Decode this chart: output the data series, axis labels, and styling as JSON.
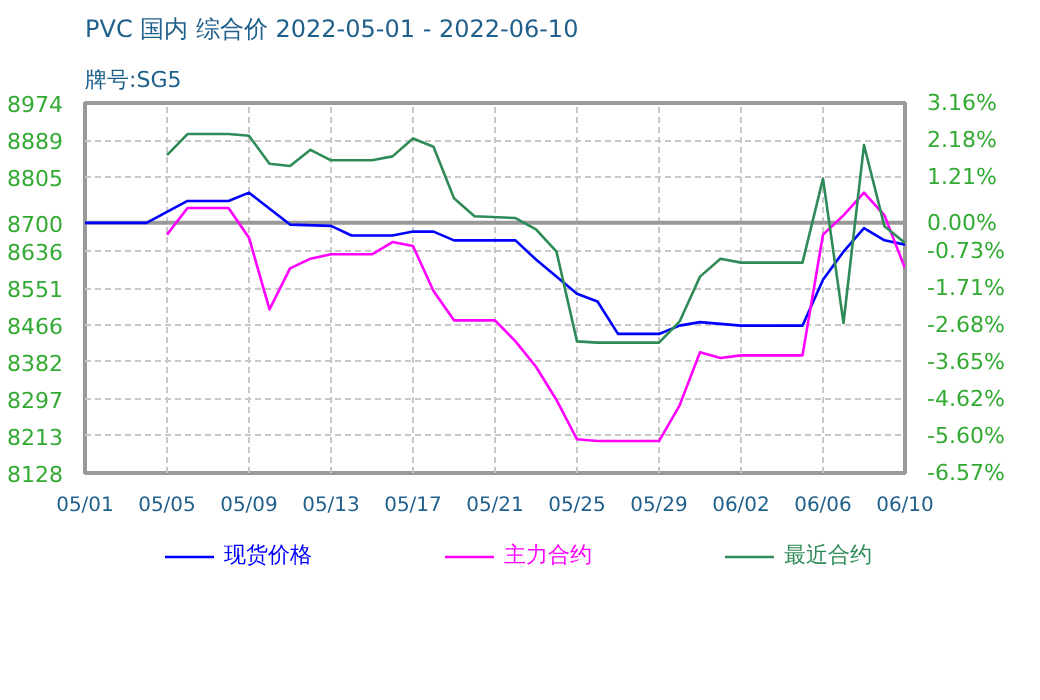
{
  "chart_data": {
    "type": "line",
    "title": "PVC 国内 综合价 2022-05-01 - 2022-06-10",
    "subtitle": "牌号:SG5",
    "xlim": [
      "2022-05-01",
      "2022-06-10"
    ],
    "xticks": [
      {
        "value": "2022-05-01",
        "label": "05/01"
      },
      {
        "value": "2022-05-05",
        "label": "05/05"
      },
      {
        "value": "2022-05-09",
        "label": "05/09"
      },
      {
        "value": "2022-05-13",
        "label": "05/13"
      },
      {
        "value": "2022-05-17",
        "label": "05/17"
      },
      {
        "value": "2022-05-21",
        "label": "05/21"
      },
      {
        "value": "2022-05-25",
        "label": "05/25"
      },
      {
        "value": "2022-05-29",
        "label": "05/29"
      },
      {
        "value": "2022-06-02",
        "label": "06/02"
      },
      {
        "value": "2022-06-06",
        "label": "06/06"
      },
      {
        "value": "2022-06-10",
        "label": "06/10"
      }
    ],
    "ylim": [
      8128,
      8974
    ],
    "yticks": [
      8128,
      8213,
      8297,
      8382,
      8466,
      8551,
      8636,
      8805,
      8889,
      8974
    ],
    "y2lim": [
      -6.57,
      3.16
    ],
    "y2ticks": [
      {
        "value": -6.57,
        "label": "-6.57%"
      },
      {
        "value": -5.6,
        "label": "-5.60%"
      },
      {
        "value": -4.62,
        "label": "-4.62%"
      },
      {
        "value": -3.65,
        "label": "-3.65%"
      },
      {
        "value": -2.68,
        "label": "-2.68%"
      },
      {
        "value": -1.71,
        "label": "-1.71%"
      },
      {
        "value": -0.73,
        "label": "-0.73%"
      },
      {
        "value": 0,
        "label": "0.00%"
      },
      {
        "value": 1.21,
        "label": "1.21%"
      },
      {
        "value": 2.18,
        "label": "2.18%"
      },
      {
        "value": 3.16,
        "label": "3.16%"
      }
    ],
    "ref_lines": [
      {
        "axis": "y",
        "value": 8700,
        "label": "8700",
        "color": "#999999"
      }
    ],
    "grid": true,
    "legend": "bottom",
    "marker": "none",
    "line_style": "solid",
    "series": [
      {
        "name": "现货价格",
        "color": "#0000ff",
        "x": [
          "2022-05-01",
          "2022-05-04",
          "2022-05-06",
          "2022-05-08",
          "2022-05-09",
          "2022-05-11",
          "2022-05-13",
          "2022-05-14",
          "2022-05-16",
          "2022-05-17",
          "2022-05-18",
          "2022-05-19",
          "2022-05-22",
          "2022-05-23",
          "2022-05-25",
          "2022-05-26",
          "2022-05-27",
          "2022-05-29",
          "2022-05-30",
          "2022-05-31",
          "2022-06-02",
          "2022-06-05",
          "2022-06-06",
          "2022-06-07",
          "2022-06-08",
          "2022-06-09",
          "2022-06-10"
        ],
        "values": [
          8700,
          8700,
          8750,
          8750,
          8769,
          8696,
          8693,
          8671,
          8671,
          8680,
          8680,
          8660,
          8660,
          8616,
          8538,
          8520,
          8446,
          8446,
          8465,
          8473,
          8465,
          8465,
          8570,
          8634,
          8688,
          8660,
          8650
        ]
      },
      {
        "name": "主力合约",
        "color": "#ff00ff",
        "x": [
          "2022-05-05",
          "2022-05-06",
          "2022-05-08",
          "2022-05-09",
          "2022-05-10",
          "2022-05-11",
          "2022-05-12",
          "2022-05-13",
          "2022-05-15",
          "2022-05-16",
          "2022-05-17",
          "2022-05-18",
          "2022-05-19",
          "2022-05-21",
          "2022-05-22",
          "2022-05-23",
          "2022-05-24",
          "2022-05-25",
          "2022-05-26",
          "2022-05-29",
          "2022-05-30",
          "2022-05-31",
          "2022-06-01",
          "2022-06-02",
          "2022-06-05",
          "2022-06-06",
          "2022-06-07",
          "2022-06-08",
          "2022-06-09",
          "2022-06-10"
        ],
        "values": [
          8673,
          8734,
          8734,
          8666,
          8502,
          8596,
          8618,
          8628,
          8628,
          8656,
          8647,
          8544,
          8477,
          8477,
          8429,
          8371,
          8295,
          8205,
          8201,
          8201,
          8282,
          8404,
          8391,
          8397,
          8397,
          8673,
          8717,
          8769,
          8717,
          8596
        ]
      },
      {
        "name": "最近合约",
        "color": "#2e8b57",
        "x": [
          "2022-05-05",
          "2022-05-06",
          "2022-05-08",
          "2022-05-09",
          "2022-05-10",
          "2022-05-11",
          "2022-05-12",
          "2022-05-13",
          "2022-05-15",
          "2022-05-16",
          "2022-05-17",
          "2022-05-18",
          "2022-05-19",
          "2022-05-20",
          "2022-05-22",
          "2022-05-23",
          "2022-05-24",
          "2022-05-25",
          "2022-05-26",
          "2022-05-29",
          "2022-05-30",
          "2022-05-31",
          "2022-06-01",
          "2022-06-02",
          "2022-06-05",
          "2022-06-06",
          "2022-06-07",
          "2022-06-08",
          "2022-06-09",
          "2022-06-10"
        ],
        "values": [
          8855,
          8903,
          8903,
          8899,
          8835,
          8830,
          8867,
          8843,
          8843,
          8852,
          8893,
          8874,
          8756,
          8715,
          8711,
          8685,
          8634,
          8429,
          8426,
          8426,
          8474,
          8577,
          8618,
          8609,
          8609,
          8801,
          8471,
          8878,
          8692,
          8654
        ]
      }
    ]
  }
}
